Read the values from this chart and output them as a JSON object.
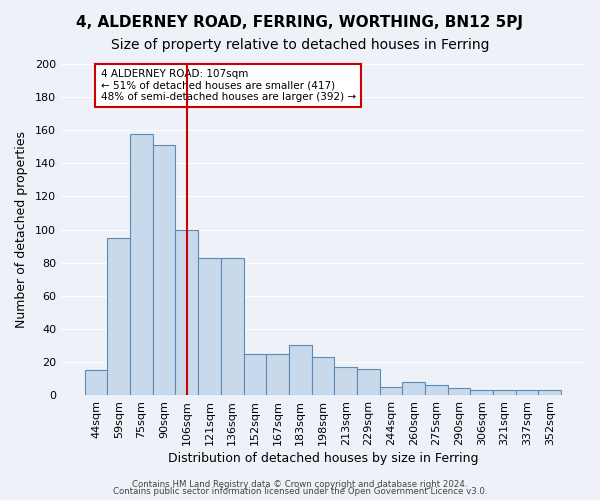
{
  "title1": "4, ALDERNEY ROAD, FERRING, WORTHING, BN12 5PJ",
  "title2": "Size of property relative to detached houses in Ferring",
  "xlabel": "Distribution of detached houses by size in Ferring",
  "ylabel": "Number of detached properties",
  "categories": [
    "44sqm",
    "59sqm",
    "75sqm",
    "90sqm",
    "106sqm",
    "121sqm",
    "136sqm",
    "152sqm",
    "167sqm",
    "183sqm",
    "198sqm",
    "213sqm",
    "229sqm",
    "244sqm",
    "260sqm",
    "275sqm",
    "290sqm",
    "306sqm",
    "321sqm",
    "337sqm",
    "352sqm"
  ],
  "values": [
    15,
    95,
    158,
    151,
    100,
    83,
    83,
    25,
    25,
    30,
    23,
    17,
    16,
    5,
    8,
    6,
    4,
    3,
    3,
    3,
    3
  ],
  "bar_color": "#c9d9ec",
  "bar_edge_color": "#5b8ab5",
  "vline_x": 4,
  "vline_color": "#cc0000",
  "ylim": [
    0,
    200
  ],
  "yticks": [
    0,
    20,
    40,
    60,
    80,
    100,
    120,
    140,
    160,
    180,
    200
  ],
  "annotation_box_text": "4 ALDERNEY ROAD: 107sqm\n← 51% of detached houses are smaller (417)\n48% of semi-detached houses are larger (392) →",
  "annotation_box_edge_color": "#cc0000",
  "footer1": "Contains HM Land Registry data © Crown copyright and database right 2024.",
  "footer2": "Contains public sector information licensed under the Open Government Licence v3.0.",
  "bg_color": "#eef2f8",
  "grid_color": "#ffffff",
  "title1_fontsize": 11,
  "title2_fontsize": 10,
  "xlabel_fontsize": 9,
  "ylabel_fontsize": 9
}
